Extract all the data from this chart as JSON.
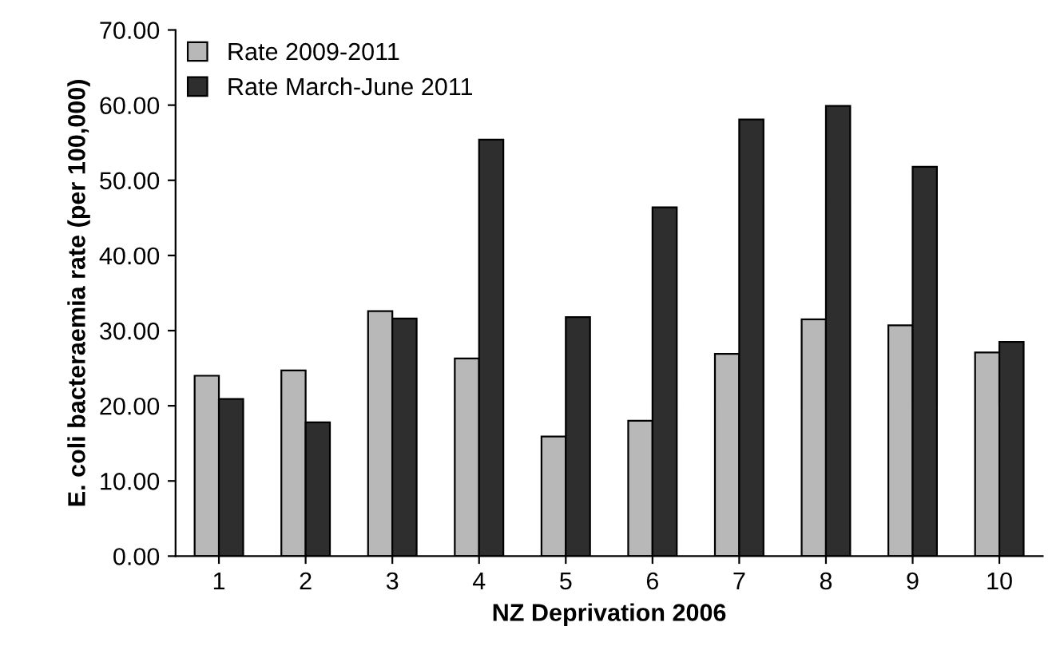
{
  "chart_data": {
    "type": "bar",
    "xlabel": "NZ Deprivation 2006",
    "ylabel": "E. coli bacteraemia rate (per 100,000)",
    "categories": [
      "1",
      "2",
      "3",
      "4",
      "5",
      "6",
      "7",
      "8",
      "9",
      "10"
    ],
    "series": [
      {
        "name": "Rate 2009-2011",
        "color": "#b8b8b8",
        "values": [
          24.0,
          24.7,
          32.6,
          26.3,
          15.9,
          18.0,
          26.9,
          31.5,
          30.7,
          27.1
        ]
      },
      {
        "name": "Rate March-June 2011",
        "color": "#2e2e2e",
        "values": [
          20.9,
          17.8,
          31.6,
          55.4,
          31.8,
          46.4,
          58.1,
          59.9,
          51.8,
          28.5
        ]
      }
    ],
    "ylim": [
      0,
      70
    ],
    "yticks": [
      {
        "value": 0,
        "label": "0.00"
      },
      {
        "value": 10,
        "label": "10.00"
      },
      {
        "value": 20,
        "label": "20.00"
      },
      {
        "value": 30,
        "label": "30.00"
      },
      {
        "value": 40,
        "label": "40.00"
      },
      {
        "value": 50,
        "label": "50.00"
      },
      {
        "value": 60,
        "label": "60.00"
      },
      {
        "value": 70,
        "label": "70.00"
      }
    ],
    "grid": false,
    "legend": "top left"
  }
}
